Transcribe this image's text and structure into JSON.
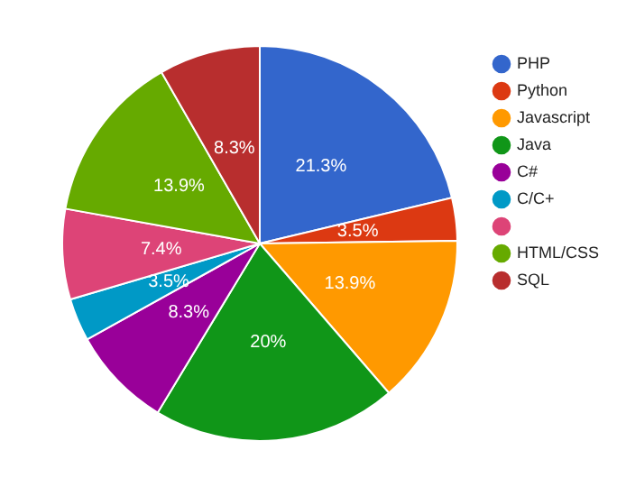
{
  "chart_data": {
    "type": "pie",
    "categories": [
      "PHP",
      "Python",
      "Javascript",
      "Java",
      "C#",
      "C/C+",
      null,
      "HTML/CSS",
      "SQL"
    ],
    "values": [
      21.3,
      3.5,
      13.9,
      20,
      8.3,
      3.5,
      7.4,
      13.9,
      8.3
    ],
    "value_labels": [
      "21.3%",
      "3.5%",
      "13.9%",
      "20%",
      "8.3%",
      "3.5%",
      "7.4%",
      "13.9%",
      "8.3%"
    ],
    "colors": [
      "#3366cc",
      "#dc3912",
      "#ff9900",
      "#109618",
      "#990099",
      "#0099c6",
      "#dd4477",
      "#66aa00",
      "#b82e2e"
    ],
    "legend": "right"
  }
}
